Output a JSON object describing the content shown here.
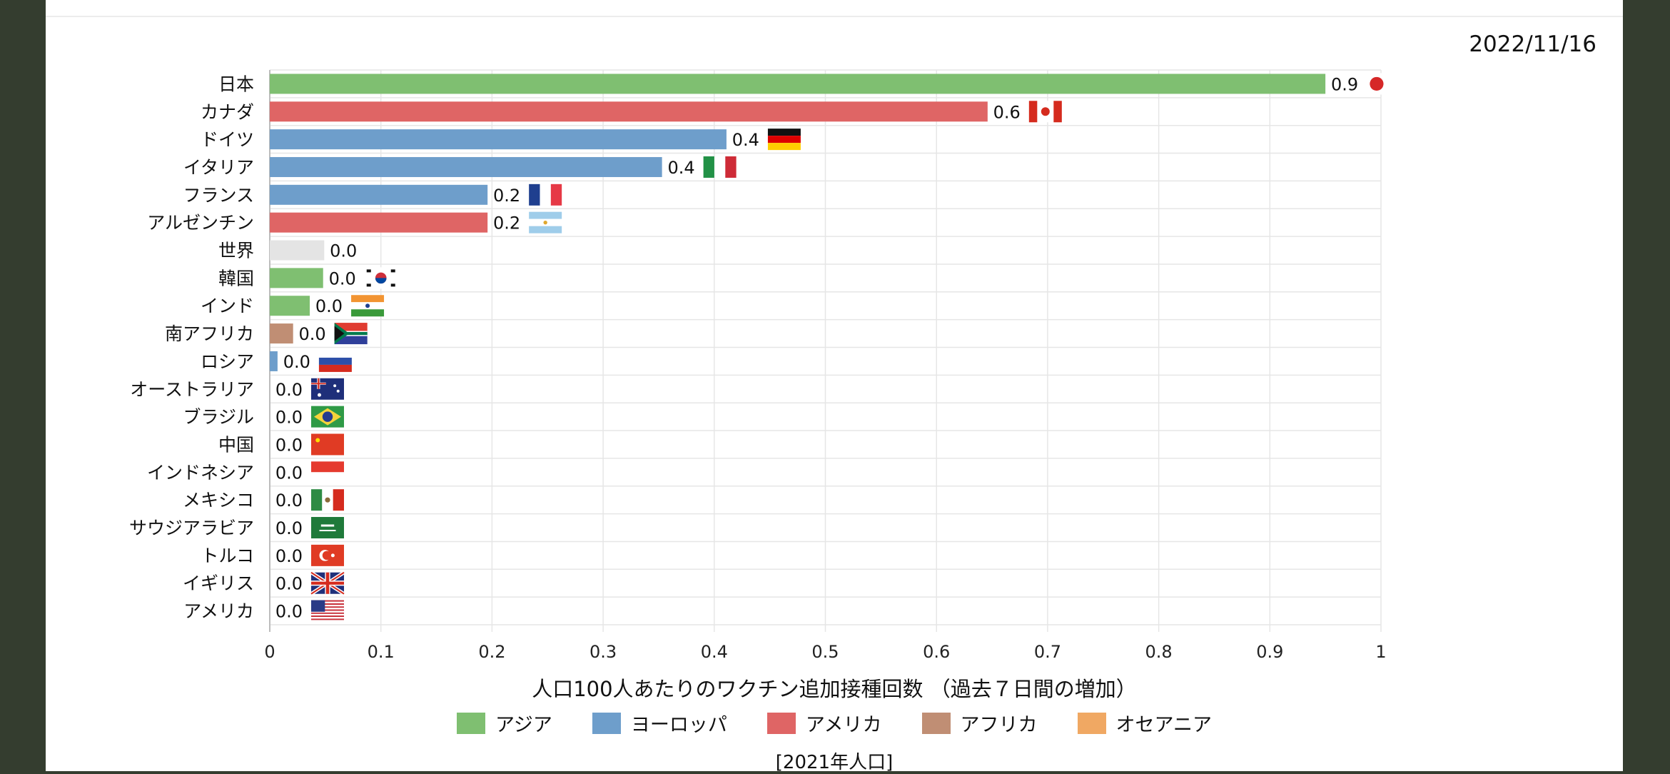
{
  "date": "2022/11/16",
  "colors": {
    "asia": "#7fbf71",
    "europe": "#6e9ecb",
    "americas": "#df6565",
    "africa": "#c08e74",
    "oceania": "#f0a863",
    "world": "#e4e4e4"
  },
  "legend": [
    {
      "label": "アジア",
      "color": "#7fbf71"
    },
    {
      "label": "ヨーロッパ",
      "color": "#6e9ecb"
    },
    {
      "label": "アメリカ",
      "color": "#df6565"
    },
    {
      "label": "アフリカ",
      "color": "#c08e74"
    },
    {
      "label": "オセアニア",
      "color": "#f0a863"
    }
  ],
  "population_note": "[2021年人口]",
  "chart_data": {
    "type": "bar",
    "orientation": "horizontal",
    "xlabel": "人口100人あたりのワクチン追加接種回数 （過去７日間の増加）",
    "xlim": [
      0,
      1
    ],
    "xticks": [
      "0",
      "0.1",
      "0.2",
      "0.3",
      "0.4",
      "0.5",
      "0.6",
      "0.7",
      "0.8",
      "0.9",
      "1"
    ],
    "grid": true,
    "bars": [
      {
        "country": "日本",
        "value": 0.95,
        "label": "0.9",
        "region": "asia",
        "flag": "japan-flag"
      },
      {
        "country": "カナダ",
        "value": 0.646,
        "label": "0.6",
        "region": "americas",
        "flag": "canada-flag"
      },
      {
        "country": "ドイツ",
        "value": 0.411,
        "label": "0.4",
        "region": "europe",
        "flag": "germany-flag"
      },
      {
        "country": "イタリア",
        "value": 0.353,
        "label": "0.4",
        "region": "europe",
        "flag": "italy-flag"
      },
      {
        "country": "フランス",
        "value": 0.196,
        "label": "0.2",
        "region": "europe",
        "flag": "france-flag"
      },
      {
        "country": "アルゼンチン",
        "value": 0.196,
        "label": "0.2",
        "region": "americas",
        "flag": "argentina-flag"
      },
      {
        "country": "世界",
        "value": 0.049,
        "label": "0.0",
        "region": "world",
        "flag": ""
      },
      {
        "country": "韓国",
        "value": 0.048,
        "label": "0.0",
        "region": "asia",
        "flag": "korea-flag"
      },
      {
        "country": "インド",
        "value": 0.036,
        "label": "0.0",
        "region": "asia",
        "flag": "india-flag"
      },
      {
        "country": "南アフリカ",
        "value": 0.021,
        "label": "0.0",
        "region": "africa",
        "flag": "south-africa-flag"
      },
      {
        "country": "ロシア",
        "value": 0.007,
        "label": "0.0",
        "region": "europe",
        "flag": "russia-flag"
      },
      {
        "country": "オーストラリア",
        "value": 0.0,
        "label": "0.0",
        "region": "oceania",
        "flag": "australia-flag"
      },
      {
        "country": "ブラジル",
        "value": 0.0,
        "label": "0.0",
        "region": "americas",
        "flag": "brazil-flag"
      },
      {
        "country": "中国",
        "value": 0.0,
        "label": "0.0",
        "region": "asia",
        "flag": "china-flag"
      },
      {
        "country": "インドネシア",
        "value": 0.0,
        "label": "0.0",
        "region": "asia",
        "flag": "indonesia-flag"
      },
      {
        "country": "メキシコ",
        "value": 0.0,
        "label": "0.0",
        "region": "americas",
        "flag": "mexico-flag"
      },
      {
        "country": "サウジアラビア",
        "value": 0.0,
        "label": "0.0",
        "region": "asia",
        "flag": "saudi-arabia-flag"
      },
      {
        "country": "トルコ",
        "value": 0.0,
        "label": "0.0",
        "region": "asia",
        "flag": "turkey-flag"
      },
      {
        "country": "イギリス",
        "value": 0.0,
        "label": "0.0",
        "region": "europe",
        "flag": "uk-flag"
      },
      {
        "country": "アメリカ",
        "value": 0.0,
        "label": "0.0",
        "region": "americas",
        "flag": "usa-flag"
      }
    ]
  }
}
